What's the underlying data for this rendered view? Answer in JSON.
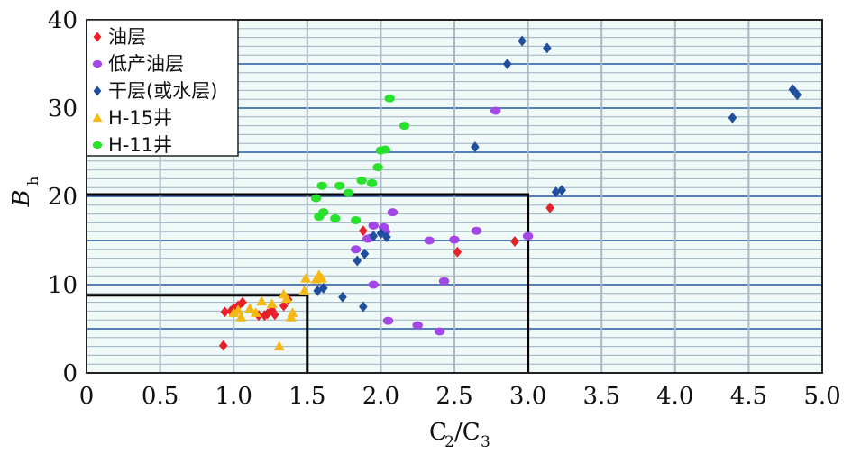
{
  "chart_data": {
    "type": "scatter",
    "xlabel": "C2/C3",
    "ylabel": "Bh",
    "xlim": [
      0,
      5
    ],
    "ylim": [
      0,
      40
    ],
    "xticks": [
      "0",
      "0.5",
      "1.0",
      "1.5",
      "2.0",
      "2.5",
      "3.0",
      "3.5",
      "4.0",
      "4.5",
      "5.0"
    ],
    "yticks": [
      "0",
      "10",
      "20",
      "30",
      "40"
    ],
    "grid": true,
    "legend_position": "top-left",
    "regions": [
      {
        "x_max": 1.5,
        "y_max": 8.8
      },
      {
        "x_max": 3.0,
        "y_max": 20.2
      }
    ],
    "series": [
      {
        "name": "油层",
        "marker": "diamond",
        "color": "#e8202a",
        "points": [
          [
            0.93,
            3.1
          ],
          [
            0.94,
            6.9
          ],
          [
            0.98,
            7.0
          ],
          [
            1.0,
            7.3
          ],
          [
            1.03,
            7.6
          ],
          [
            1.06,
            8.0
          ],
          [
            1.17,
            6.5
          ],
          [
            1.21,
            6.5
          ],
          [
            1.23,
            6.7
          ],
          [
            1.26,
            7.1
          ],
          [
            1.28,
            6.6
          ],
          [
            1.34,
            7.6
          ],
          [
            1.37,
            8.3
          ],
          [
            1.88,
            16.1
          ],
          [
            2.52,
            13.7
          ],
          [
            2.91,
            14.9
          ],
          [
            3.15,
            18.7
          ]
        ]
      },
      {
        "name": "低产油层",
        "marker": "circle",
        "color": "#a347e6",
        "points": [
          [
            1.83,
            14.0
          ],
          [
            1.91,
            15.2
          ],
          [
            1.93,
            15.3
          ],
          [
            1.95,
            16.7
          ],
          [
            1.95,
            10.0
          ],
          [
            2.02,
            16.5
          ],
          [
            2.03,
            16.0
          ],
          [
            2.05,
            5.9
          ],
          [
            2.08,
            18.2
          ],
          [
            2.25,
            5.4
          ],
          [
            2.33,
            15.0
          ],
          [
            2.4,
            4.7
          ],
          [
            2.43,
            10.4
          ],
          [
            2.5,
            15.1
          ],
          [
            2.65,
            16.1
          ],
          [
            2.78,
            29.7
          ],
          [
            3.0,
            15.5
          ]
        ]
      },
      {
        "name": "干层(或水层)",
        "marker": "diamond",
        "color": "#1f4e9c",
        "points": [
          [
            1.57,
            9.3
          ],
          [
            1.61,
            9.6
          ],
          [
            1.74,
            8.6
          ],
          [
            1.84,
            12.7
          ],
          [
            1.88,
            7.5
          ],
          [
            1.89,
            13.5
          ],
          [
            1.95,
            15.5
          ],
          [
            2.0,
            15.8
          ],
          [
            2.04,
            15.4
          ],
          [
            2.64,
            25.6
          ],
          [
            2.86,
            35.0
          ],
          [
            2.96,
            37.6
          ],
          [
            3.13,
            36.8
          ],
          [
            3.19,
            20.5
          ],
          [
            3.23,
            20.7
          ],
          [
            4.39,
            28.9
          ],
          [
            4.8,
            32.1
          ],
          [
            4.83,
            31.5
          ]
        ]
      },
      {
        "name": "H-15井",
        "marker": "triangle",
        "color": "#f5b914",
        "points": [
          [
            1.0,
            6.8
          ],
          [
            1.03,
            7.1
          ],
          [
            1.05,
            6.3
          ],
          [
            1.11,
            7.3
          ],
          [
            1.15,
            6.8
          ],
          [
            1.19,
            8.1
          ],
          [
            1.26,
            7.8
          ],
          [
            1.31,
            3.0
          ],
          [
            1.34,
            8.9
          ],
          [
            1.36,
            8.4
          ],
          [
            1.39,
            6.3
          ],
          [
            1.4,
            6.8
          ],
          [
            1.48,
            9.3
          ],
          [
            1.49,
            10.7
          ],
          [
            1.56,
            10.6
          ],
          [
            1.58,
            11.1
          ],
          [
            1.6,
            10.7
          ]
        ]
      },
      {
        "name": "H-11井",
        "marker": "circle",
        "color": "#27e12a",
        "points": [
          [
            1.56,
            19.8
          ],
          [
            1.58,
            17.7
          ],
          [
            1.6,
            21.2
          ],
          [
            1.61,
            18.2
          ],
          [
            1.69,
            17.5
          ],
          [
            1.72,
            21.2
          ],
          [
            1.78,
            20.4
          ],
          [
            1.83,
            17.3
          ],
          [
            1.87,
            21.8
          ],
          [
            1.94,
            21.5
          ],
          [
            1.98,
            23.3
          ],
          [
            2.0,
            25.2
          ],
          [
            2.03,
            25.3
          ],
          [
            2.06,
            31.1
          ],
          [
            2.16,
            28.0
          ]
        ]
      }
    ]
  }
}
